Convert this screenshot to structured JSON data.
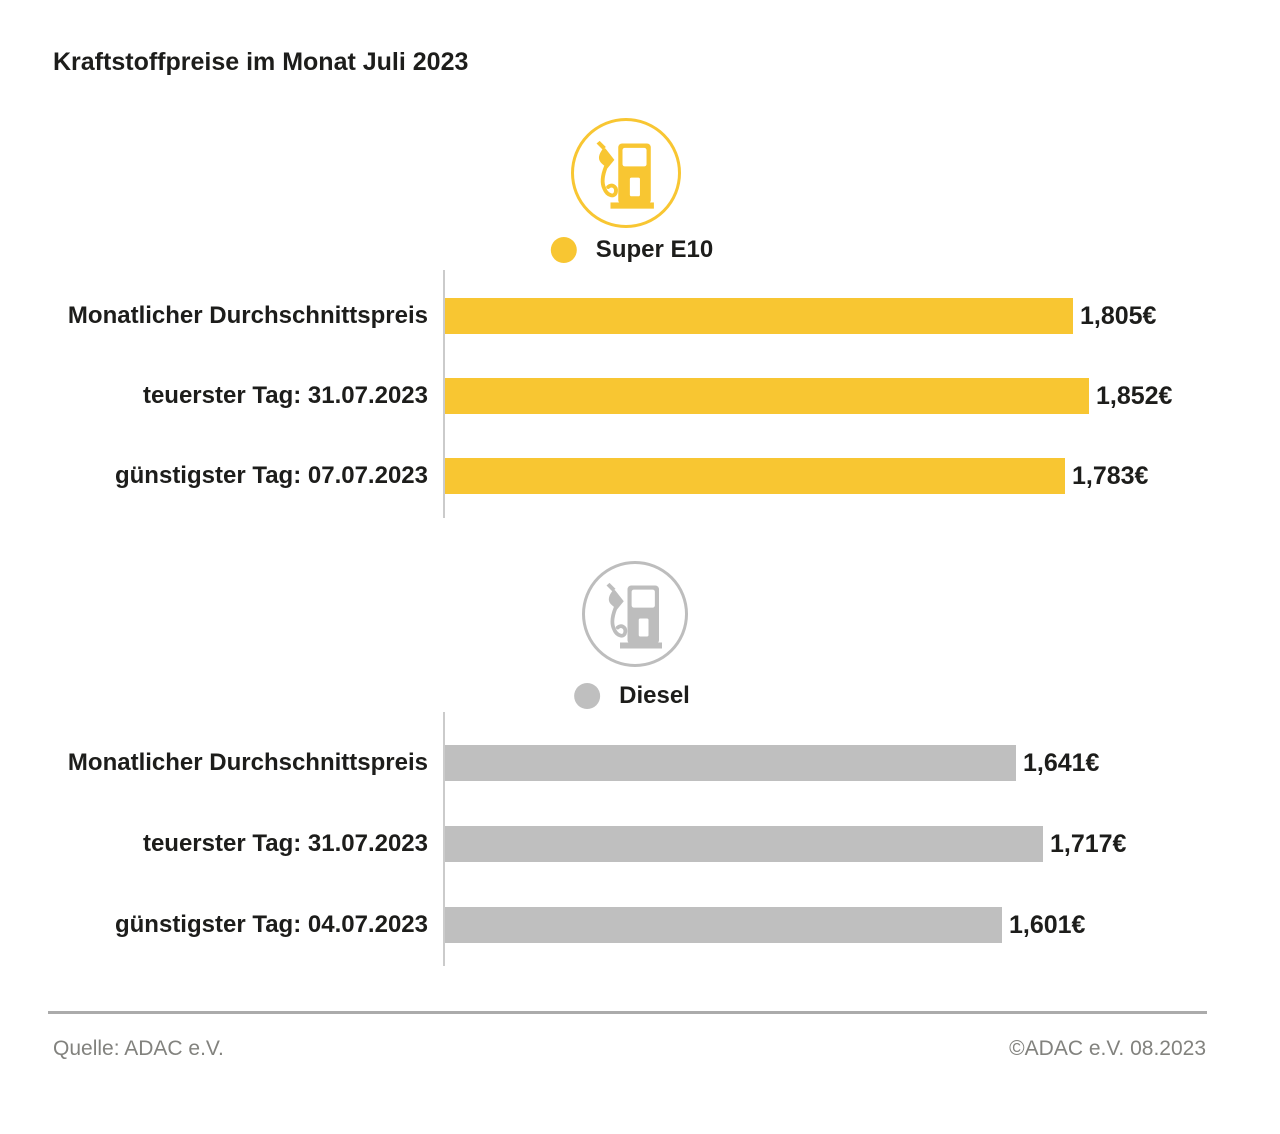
{
  "title": "Kraftstoffpreise im Monat Juli 2023",
  "colors": {
    "super_yellow": "#F8C632",
    "diesel_gray": "#BFBFBF",
    "diesel_icon_gray": "#BDBDBD",
    "axis_gray": "#CBCBCB",
    "divider_gray": "#ABABAB",
    "footer_text_gray": "#82827e",
    "text_black": "#1d1d1b"
  },
  "footer": {
    "source": "Quelle: ADAC e.V.",
    "copyright": "©ADAC e.V. 08.2023"
  },
  "icons": {
    "super": "fuel-pump-icon",
    "diesel": "fuel-pump-icon",
    "legend_super": "legend-dot-icon",
    "legend_diesel": "legend-dot-icon"
  },
  "chart_data": [
    {
      "type": "bar",
      "orientation": "horizontal",
      "series_name": "Super E10",
      "legend": {
        "label": "Super E10",
        "color": "#F8C632",
        "icon": "fuel-pump-icon"
      },
      "categories": [
        "Monatlicher Durchschnittspreis",
        "teuerster Tag: 31.07.2023",
        "günstigster Tag: 07.07.2023"
      ],
      "values": [
        1.805,
        1.852,
        1.783
      ],
      "value_labels": [
        "1,805€",
        "1,852€",
        "1,783€"
      ],
      "unit": "€",
      "xlim": [
        0,
        1.852
      ],
      "grid": false,
      "legend_position": "top-center"
    },
    {
      "type": "bar",
      "orientation": "horizontal",
      "series_name": "Diesel",
      "legend": {
        "label": "Diesel",
        "color": "#BFBFBF",
        "icon": "fuel-pump-icon"
      },
      "categories": [
        "Monatlicher Durchschnittspreis",
        "teuerster Tag: 31.07.2023",
        "günstigster Tag: 04.07.2023"
      ],
      "values": [
        1.641,
        1.717,
        1.601
      ],
      "value_labels": [
        "1,641€",
        "1,717€",
        "1,601€"
      ],
      "unit": "€",
      "xlim": [
        0,
        1.852
      ],
      "grid": false,
      "legend_position": "top-center"
    }
  ]
}
